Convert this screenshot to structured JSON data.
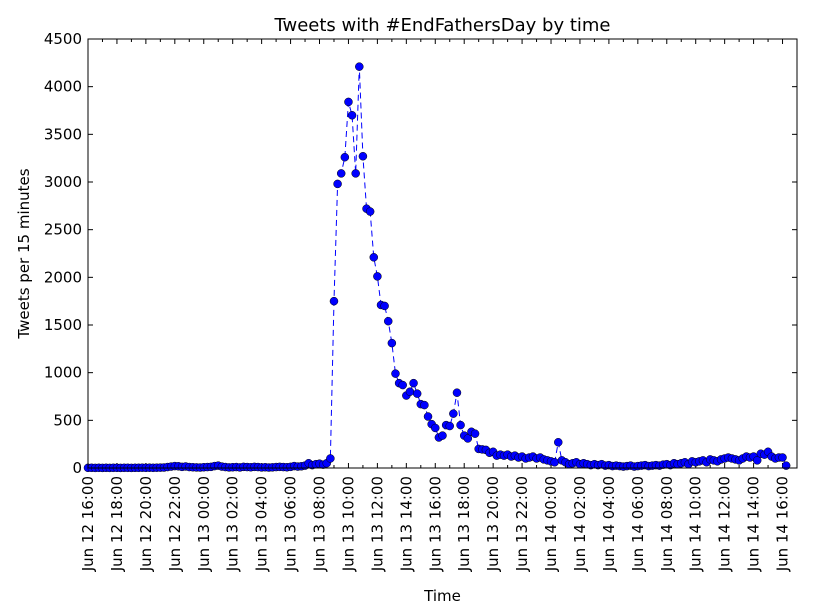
{
  "chart_data": {
    "type": "line",
    "title": "Tweets with #EndFathersDay by time",
    "xlabel": "Time",
    "ylabel": "Tweets per 15 minutes",
    "ylim": [
      0,
      4500
    ],
    "yticks": [
      0,
      500,
      1000,
      1500,
      2000,
      2500,
      3000,
      3500,
      4000,
      4500
    ],
    "xlim": [
      "Jun 12 16:00",
      "Jun 14 17:00"
    ],
    "xtick_labels": [
      "Jun 12 16:00",
      "Jun 12 18:00",
      "Jun 12 20:00",
      "Jun 12 22:00",
      "Jun 13 00:00",
      "Jun 13 02:00",
      "Jun 13 04:00",
      "Jun 13 06:00",
      "Jun 13 08:00",
      "Jun 13 10:00",
      "Jun 13 12:00",
      "Jun 13 14:00",
      "Jun 13 16:00",
      "Jun 13 18:00",
      "Jun 13 20:00",
      "Jun 13 22:00",
      "Jun 14 00:00",
      "Jun 14 02:00",
      "Jun 14 04:00",
      "Jun 14 06:00",
      "Jun 14 08:00",
      "Jun 14 10:00",
      "Jun 14 12:00",
      "Jun 14 14:00",
      "Jun 14 16:00"
    ],
    "grid": false,
    "legend": false,
    "series": [
      {
        "color": "#0000ff",
        "marker": "circle",
        "linestyle": "dashed",
        "points": [
          [
            "Jun 12 16:00",
            2
          ],
          [
            "Jun 12 16:15",
            2
          ],
          [
            "Jun 12 16:30",
            1
          ],
          [
            "Jun 12 16:45",
            2
          ],
          [
            "Jun 12 17:00",
            1
          ],
          [
            "Jun 12 17:15",
            2
          ],
          [
            "Jun 12 17:30",
            1
          ],
          [
            "Jun 12 17:45",
            2
          ],
          [
            "Jun 12 18:00",
            2
          ],
          [
            "Jun 12 18:15",
            1
          ],
          [
            "Jun 12 18:30",
            2
          ],
          [
            "Jun 12 18:45",
            2
          ],
          [
            "Jun 12 19:00",
            1
          ],
          [
            "Jun 12 19:15",
            2
          ],
          [
            "Jun 12 19:30",
            2
          ],
          [
            "Jun 12 19:45",
            3
          ],
          [
            "Jun 12 20:00",
            2
          ],
          [
            "Jun 12 20:15",
            3
          ],
          [
            "Jun 12 20:30",
            2
          ],
          [
            "Jun 12 20:45",
            3
          ],
          [
            "Jun 12 21:00",
            4
          ],
          [
            "Jun 12 21:15",
            5
          ],
          [
            "Jun 12 21:30",
            10
          ],
          [
            "Jun 12 21:45",
            15
          ],
          [
            "Jun 12 22:00",
            20
          ],
          [
            "Jun 12 22:15",
            18
          ],
          [
            "Jun 12 22:30",
            12
          ],
          [
            "Jun 12 22:45",
            16
          ],
          [
            "Jun 12 23:00",
            10
          ],
          [
            "Jun 12 23:15",
            8
          ],
          [
            "Jun 12 23:30",
            6
          ],
          [
            "Jun 12 23:45",
            5
          ],
          [
            "Jun 13 00:00",
            8
          ],
          [
            "Jun 13 00:15",
            10
          ],
          [
            "Jun 13 00:30",
            12
          ],
          [
            "Jun 13 00:45",
            20
          ],
          [
            "Jun 13 01:00",
            25
          ],
          [
            "Jun 13 01:15",
            15
          ],
          [
            "Jun 13 01:30",
            10
          ],
          [
            "Jun 13 01:45",
            6
          ],
          [
            "Jun 13 02:00",
            8
          ],
          [
            "Jun 13 02:15",
            10
          ],
          [
            "Jun 13 02:30",
            6
          ],
          [
            "Jun 13 02:45",
            12
          ],
          [
            "Jun 13 03:00",
            10
          ],
          [
            "Jun 13 03:15",
            8
          ],
          [
            "Jun 13 03:30",
            12
          ],
          [
            "Jun 13 03:45",
            10
          ],
          [
            "Jun 13 04:00",
            6
          ],
          [
            "Jun 13 04:15",
            8
          ],
          [
            "Jun 13 04:30",
            5
          ],
          [
            "Jun 13 04:45",
            7
          ],
          [
            "Jun 13 05:00",
            10
          ],
          [
            "Jun 13 05:15",
            12
          ],
          [
            "Jun 13 05:30",
            10
          ],
          [
            "Jun 13 05:45",
            8
          ],
          [
            "Jun 13 06:00",
            12
          ],
          [
            "Jun 13 06:15",
            20
          ],
          [
            "Jun 13 06:30",
            15
          ],
          [
            "Jun 13 06:45",
            18
          ],
          [
            "Jun 13 07:00",
            25
          ],
          [
            "Jun 13 07:15",
            50
          ],
          [
            "Jun 13 07:30",
            30
          ],
          [
            "Jun 13 07:45",
            40
          ],
          [
            "Jun 13 08:00",
            45
          ],
          [
            "Jun 13 08:15",
            35
          ],
          [
            "Jun 13 08:30",
            50
          ],
          [
            "Jun 13 08:45",
            100
          ],
          [
            "Jun 13 09:00",
            1750
          ],
          [
            "Jun 13 09:15",
            2980
          ],
          [
            "Jun 13 09:30",
            3090
          ],
          [
            "Jun 13 09:45",
            3260
          ],
          [
            "Jun 13 10:00",
            3840
          ],
          [
            "Jun 13 10:15",
            3700
          ],
          [
            "Jun 13 10:30",
            3090
          ],
          [
            "Jun 13 10:45",
            4210
          ],
          [
            "Jun 13 11:00",
            3270
          ],
          [
            "Jun 13 11:15",
            2720
          ],
          [
            "Jun 13 11:30",
            2690
          ],
          [
            "Jun 13 11:45",
            2210
          ],
          [
            "Jun 13 12:00",
            2010
          ],
          [
            "Jun 13 12:15",
            1710
          ],
          [
            "Jun 13 12:30",
            1700
          ],
          [
            "Jun 13 12:45",
            1540
          ],
          [
            "Jun 13 13:00",
            1310
          ],
          [
            "Jun 13 13:15",
            990
          ],
          [
            "Jun 13 13:30",
            890
          ],
          [
            "Jun 13 13:45",
            870
          ],
          [
            "Jun 13 14:00",
            760
          ],
          [
            "Jun 13 14:15",
            800
          ],
          [
            "Jun 13 14:30",
            890
          ],
          [
            "Jun 13 14:45",
            780
          ],
          [
            "Jun 13 15:00",
            670
          ],
          [
            "Jun 13 15:15",
            660
          ],
          [
            "Jun 13 15:30",
            540
          ],
          [
            "Jun 13 15:45",
            460
          ],
          [
            "Jun 13 16:00",
            420
          ],
          [
            "Jun 13 16:15",
            320
          ],
          [
            "Jun 13 16:30",
            340
          ],
          [
            "Jun 13 16:45",
            450
          ],
          [
            "Jun 13 17:00",
            440
          ],
          [
            "Jun 13 17:15",
            570
          ],
          [
            "Jun 13 17:30",
            790
          ],
          [
            "Jun 13 17:45",
            450
          ],
          [
            "Jun 13 18:00",
            340
          ],
          [
            "Jun 13 18:15",
            310
          ],
          [
            "Jun 13 18:30",
            380
          ],
          [
            "Jun 13 18:45",
            360
          ],
          [
            "Jun 13 19:00",
            200
          ],
          [
            "Jun 13 19:15",
            195
          ],
          [
            "Jun 13 19:30",
            190
          ],
          [
            "Jun 13 19:45",
            160
          ],
          [
            "Jun 13 20:00",
            170
          ],
          [
            "Jun 13 20:15",
            130
          ],
          [
            "Jun 13 20:30",
            140
          ],
          [
            "Jun 13 20:45",
            130
          ],
          [
            "Jun 13 21:00",
            140
          ],
          [
            "Jun 13 21:15",
            120
          ],
          [
            "Jun 13 21:30",
            130
          ],
          [
            "Jun 13 21:45",
            110
          ],
          [
            "Jun 13 22:00",
            120
          ],
          [
            "Jun 13 22:15",
            100
          ],
          [
            "Jun 13 22:30",
            110
          ],
          [
            "Jun 13 22:45",
            120
          ],
          [
            "Jun 13 23:00",
            100
          ],
          [
            "Jun 13 23:15",
            110
          ],
          [
            "Jun 13 23:30",
            90
          ],
          [
            "Jun 13 23:45",
            80
          ],
          [
            "Jun 14 00:00",
            70
          ],
          [
            "Jun 14 00:15",
            60
          ],
          [
            "Jun 14 00:30",
            270
          ],
          [
            "Jun 14 00:45",
            80
          ],
          [
            "Jun 14 01:00",
            60
          ],
          [
            "Jun 14 01:15",
            40
          ],
          [
            "Jun 14 01:30",
            50
          ],
          [
            "Jun 14 01:45",
            60
          ],
          [
            "Jun 14 02:00",
            40
          ],
          [
            "Jun 14 02:15",
            50
          ],
          [
            "Jun 14 02:30",
            40
          ],
          [
            "Jun 14 02:45",
            30
          ],
          [
            "Jun 14 03:00",
            40
          ],
          [
            "Jun 14 03:15",
            30
          ],
          [
            "Jun 14 03:30",
            40
          ],
          [
            "Jun 14 03:45",
            25
          ],
          [
            "Jun 14 04:00",
            30
          ],
          [
            "Jun 14 04:15",
            20
          ],
          [
            "Jun 14 04:30",
            25
          ],
          [
            "Jun 14 04:45",
            20
          ],
          [
            "Jun 14 05:00",
            15
          ],
          [
            "Jun 14 05:15",
            20
          ],
          [
            "Jun 14 05:30",
            25
          ],
          [
            "Jun 14 05:45",
            15
          ],
          [
            "Jun 14 06:00",
            20
          ],
          [
            "Jun 14 06:15",
            25
          ],
          [
            "Jun 14 06:30",
            30
          ],
          [
            "Jun 14 06:45",
            20
          ],
          [
            "Jun 14 07:00",
            25
          ],
          [
            "Jun 14 07:15",
            30
          ],
          [
            "Jun 14 07:30",
            25
          ],
          [
            "Jun 14 07:45",
            35
          ],
          [
            "Jun 14 08:00",
            40
          ],
          [
            "Jun 14 08:15",
            30
          ],
          [
            "Jun 14 08:30",
            50
          ],
          [
            "Jun 14 08:45",
            40
          ],
          [
            "Jun 14 09:00",
            50
          ],
          [
            "Jun 14 09:15",
            60
          ],
          [
            "Jun 14 09:30",
            40
          ],
          [
            "Jun 14 09:45",
            70
          ],
          [
            "Jun 14 10:00",
            60
          ],
          [
            "Jun 14 10:15",
            70
          ],
          [
            "Jun 14 10:30",
            80
          ],
          [
            "Jun 14 10:45",
            60
          ],
          [
            "Jun 14 11:00",
            90
          ],
          [
            "Jun 14 11:15",
            80
          ],
          [
            "Jun 14 11:30",
            70
          ],
          [
            "Jun 14 11:45",
            90
          ],
          [
            "Jun 14 12:00",
            100
          ],
          [
            "Jun 14 12:15",
            110
          ],
          [
            "Jun 14 12:30",
            100
          ],
          [
            "Jun 14 12:45",
            90
          ],
          [
            "Jun 14 13:00",
            80
          ],
          [
            "Jun 14 13:15",
            100
          ],
          [
            "Jun 14 13:30",
            120
          ],
          [
            "Jun 14 13:45",
            110
          ],
          [
            "Jun 14 14:00",
            120
          ],
          [
            "Jun 14 14:15",
            80
          ],
          [
            "Jun 14 14:30",
            150
          ],
          [
            "Jun 14 14:45",
            140
          ],
          [
            "Jun 14 15:00",
            170
          ],
          [
            "Jun 14 15:15",
            120
          ],
          [
            "Jun 14 15:30",
            100
          ],
          [
            "Jun 14 15:45",
            110
          ],
          [
            "Jun 14 16:00",
            110
          ],
          [
            "Jun 14 16:15",
            25
          ]
        ]
      }
    ]
  }
}
